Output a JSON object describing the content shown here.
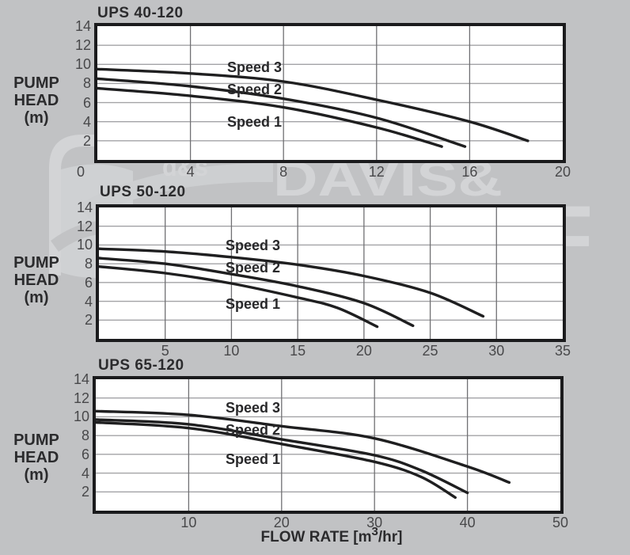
{
  "page": {
    "background_color": "#c1c2c4",
    "panel_color": "#ffffff",
    "curve_color": "#1f1f20",
    "grid_color_h": "#a3a3a6",
    "grid_color_v": "#707073",
    "border_color": "#1b1b1d"
  },
  "ylabel": {
    "lines": [
      "PUMP",
      "HEAD",
      "(m)"
    ]
  },
  "xlabel": {
    "pre": "FLOW RATE [m",
    "sup": "3",
    "post": "/hr]"
  },
  "watermark": {
    "color": "#d3d4d6",
    "line1": "DAVIS&",
    "line2": "SHIRTLIFF",
    "logo_text": "d&s"
  },
  "chart_data": [
    {
      "type": "line",
      "title": "UPS 40-120",
      "xlabel": "FLOW RATE [m3/hr]",
      "ylabel": "PUMP HEAD (m)",
      "xlim": [
        0,
        20
      ],
      "ylim": [
        0,
        14
      ],
      "xticks": [
        0,
        4,
        8,
        12,
        16,
        20
      ],
      "yticks": [
        14,
        12,
        10,
        8,
        6,
        4,
        2
      ],
      "grid": true,
      "legend_position": "inline-labels",
      "series": [
        {
          "name": "Speed 3",
          "points": [
            [
              0,
              9.5
            ],
            [
              4,
              9.05
            ],
            [
              8,
              8.2
            ],
            [
              12,
              6.3
            ],
            [
              16,
              4.0
            ],
            [
              18.5,
              2.0
            ]
          ]
        },
        {
          "name": "Speed 2",
          "points": [
            [
              0,
              8.5
            ],
            [
              4,
              7.7
            ],
            [
              8,
              6.4
            ],
            [
              12,
              4.4
            ],
            [
              15.8,
              1.4
            ]
          ]
        },
        {
          "name": "Speed 1",
          "points": [
            [
              0,
              7.5
            ],
            [
              4,
              6.7
            ],
            [
              8,
              5.5
            ],
            [
              12,
              3.4
            ],
            [
              14.8,
              1.4
            ]
          ]
        }
      ]
    },
    {
      "type": "line",
      "title": "UPS 50-120",
      "xlabel": "FLOW RATE [m3/hr]",
      "ylabel": "PUMP HEAD (m)",
      "xlim": [
        0,
        35
      ],
      "ylim": [
        0,
        14
      ],
      "xticks": [
        5,
        10,
        15,
        20,
        25,
        30,
        35
      ],
      "yticks": [
        14,
        12,
        10,
        8,
        6,
        4,
        2
      ],
      "grid": true,
      "legend_position": "inline-labels",
      "series": [
        {
          "name": "Speed 3",
          "points": [
            [
              0,
              9.6
            ],
            [
              5,
              9.3
            ],
            [
              10,
              8.7
            ],
            [
              15,
              7.9
            ],
            [
              20,
              6.7
            ],
            [
              25,
              4.9
            ],
            [
              29,
              2.4
            ]
          ]
        },
        {
          "name": "Speed 2",
          "points": [
            [
              0,
              8.6
            ],
            [
              5,
              8.0
            ],
            [
              10,
              6.9
            ],
            [
              15,
              5.6
            ],
            [
              20,
              3.8
            ],
            [
              23.7,
              1.4
            ]
          ]
        },
        {
          "name": "Speed 1",
          "points": [
            [
              0,
              7.7
            ],
            [
              5,
              7.0
            ],
            [
              10,
              5.9
            ],
            [
              15,
              4.4
            ],
            [
              18,
              3.3
            ],
            [
              21,
              1.3
            ]
          ]
        }
      ]
    },
    {
      "type": "line",
      "title": "UPS 65-120",
      "xlabel": "FLOW RATE [m3/hr]",
      "ylabel": "PUMP HEAD (m)",
      "xlim": [
        0,
        50
      ],
      "ylim": [
        0,
        14
      ],
      "xticks": [
        10,
        20,
        30,
        40,
        50
      ],
      "yticks": [
        14,
        12,
        10,
        8,
        6,
        4,
        2
      ],
      "grid": true,
      "legend_position": "inline-labels",
      "series": [
        {
          "name": "Speed 3",
          "points": [
            [
              0,
              10.6
            ],
            [
              10,
              10.2
            ],
            [
              20,
              9.0
            ],
            [
              30,
              7.7
            ],
            [
              40,
              4.7
            ],
            [
              44.5,
              3.0
            ]
          ]
        },
        {
          "name": "Speed 2",
          "points": [
            [
              0,
              9.7
            ],
            [
              10,
              9.2
            ],
            [
              20,
              7.6
            ],
            [
              30,
              5.9
            ],
            [
              35,
              4.3
            ],
            [
              40,
              1.9
            ]
          ]
        },
        {
          "name": "Speed 1",
          "points": [
            [
              0,
              9.4
            ],
            [
              10,
              8.8
            ],
            [
              20,
              7.1
            ],
            [
              30,
              5.2
            ],
            [
              35,
              3.6
            ],
            [
              38.7,
              1.4
            ]
          ]
        }
      ]
    }
  ]
}
